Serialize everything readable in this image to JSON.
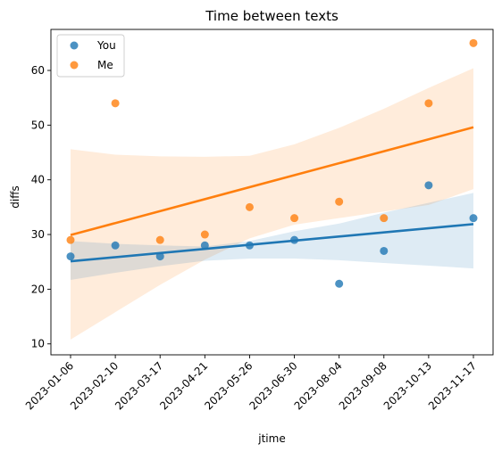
{
  "chart_data": {
    "type": "scatter",
    "title": "Time between texts",
    "xlabel": "jtime",
    "ylabel": "diffs",
    "x": [
      "2023-01-06",
      "2023-02-10",
      "2023-03-17",
      "2023-04-21",
      "2023-05-26",
      "2023-06-30",
      "2023-08-04",
      "2023-09-08",
      "2023-10-13",
      "2023-11-17"
    ],
    "series": [
      {
        "name": "You",
        "color": "#1f77b4",
        "values": [
          26,
          28,
          26,
          28,
          28,
          29,
          21,
          27,
          39,
          33
        ],
        "regression": {
          "start": 25.1,
          "end": 31.9
        },
        "ci_band": {
          "lower": [
            21.7,
            23.0,
            24.2,
            25.2,
            25.6,
            25.6,
            25.3,
            24.8,
            24.3,
            23.8
          ],
          "upper": [
            28.8,
            28.3,
            28.0,
            27.8,
            28.8,
            30.6,
            32.0,
            34.0,
            35.8,
            37.6
          ]
        }
      },
      {
        "name": "Me",
        "color": "#ff7f0e",
        "values": [
          29,
          54,
          29,
          30,
          35,
          33,
          36,
          33,
          54,
          65
        ],
        "regression": {
          "start": 29.9,
          "end": 49.6
        },
        "ci_band": {
          "lower": [
            10.8,
            15.8,
            20.8,
            25.4,
            29.3,
            31.8,
            33.0,
            34.2,
            35.4,
            38.3
          ],
          "upper": [
            45.6,
            44.6,
            44.3,
            44.2,
            44.4,
            46.5,
            49.5,
            53.0,
            56.8,
            60.4
          ]
        }
      }
    ],
    "ylim": [
      8,
      67.5
    ],
    "yticks": [
      10,
      20,
      30,
      40,
      50,
      60
    ],
    "grid": false,
    "legend": "top-left"
  }
}
